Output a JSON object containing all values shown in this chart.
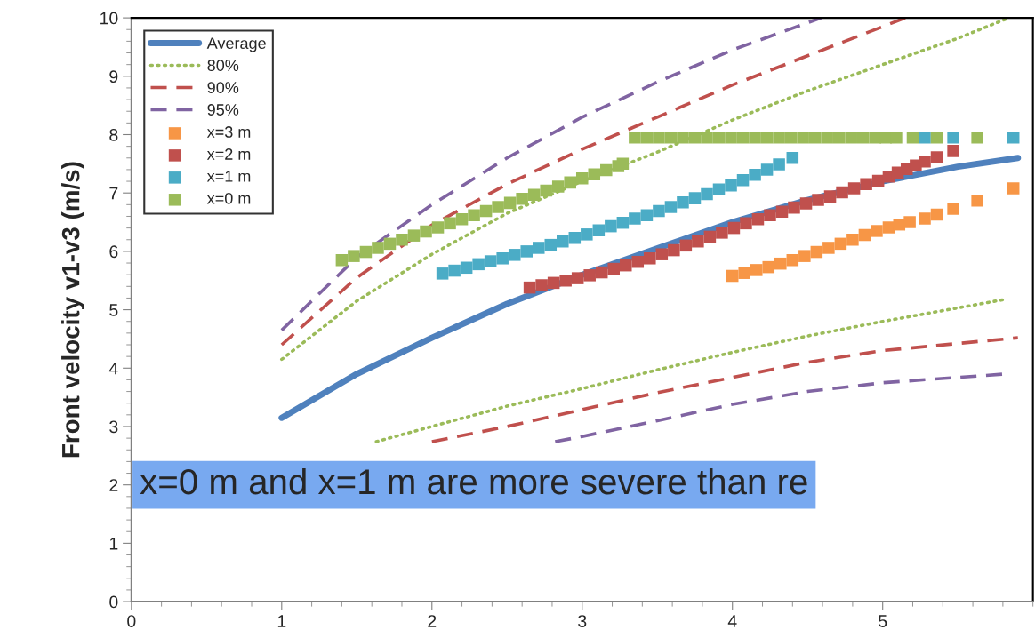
{
  "chart_data": {
    "type": "line",
    "ylabel": "Front velocity v1-v3 (m/s)",
    "xlim": [
      0,
      6
    ],
    "xticks": [
      0,
      1,
      2,
      3,
      4,
      5
    ],
    "ylim": [
      0,
      10
    ],
    "yticks": [
      0,
      1,
      2,
      3,
      4,
      5,
      6,
      7,
      8,
      9,
      10
    ],
    "grid": false,
    "legend": "top left",
    "annotations": [
      "x=0 m and x=1 m are more severe than re"
    ],
    "series": [
      {
        "name": "Average",
        "line_style": "solid",
        "color": "#4f81bd",
        "x": [
          1,
          1.5,
          2,
          2.5,
          3,
          3.5,
          4,
          4.5,
          5,
          5.5,
          5.9
        ],
        "values": [
          3.15,
          3.9,
          4.52,
          5.1,
          5.6,
          6.05,
          6.5,
          6.88,
          7.2,
          7.45,
          7.6
        ]
      },
      {
        "name": "80%",
        "line_style": "dotted",
        "color": "#9bbb59",
        "x": [
          1,
          1.5,
          2,
          2.5,
          3,
          3.5,
          4,
          4.5,
          5,
          5.5,
          5.84
        ],
        "values": [
          4.15,
          5.15,
          5.95,
          6.65,
          7.2,
          7.7,
          8.25,
          8.75,
          9.2,
          9.65,
          10
        ]
      },
      {
        "name": "90%",
        "line_style": "dashed",
        "color": "#c0504d",
        "x": [
          1,
          1.5,
          2,
          2.5,
          3,
          3.5,
          4,
          4.5,
          5,
          5.15
        ],
        "values": [
          4.4,
          5.55,
          6.45,
          7.15,
          7.75,
          8.3,
          8.85,
          9.35,
          9.85,
          10
        ]
      },
      {
        "name": "95%",
        "line_style": "dashed",
        "color": "#8064a2",
        "x": [
          1,
          1.5,
          2,
          2.5,
          3,
          3.5,
          4,
          4.59
        ],
        "values": [
          4.65,
          5.9,
          6.8,
          7.6,
          8.3,
          8.9,
          9.45,
          10
        ]
      },
      {
        "line_style": "dotted",
        "color": "#9bbb59",
        "x": [
          1.63,
          2,
          2.5,
          3,
          3.5,
          4,
          4.5,
          5,
          5.82
        ],
        "values": [
          2.74,
          3.0,
          3.35,
          3.65,
          3.97,
          4.27,
          4.55,
          4.8,
          5.18
        ]
      },
      {
        "line_style": "dashed",
        "color": "#c0504d",
        "x": [
          2.0,
          2.5,
          3,
          3.5,
          4,
          4.5,
          5,
          5.9
        ],
        "values": [
          2.74,
          3.0,
          3.29,
          3.58,
          3.84,
          4.1,
          4.3,
          4.52
        ]
      },
      {
        "line_style": "dashed",
        "color": "#8064a2",
        "x": [
          2.82,
          3,
          3.5,
          4,
          4.5,
          5,
          5.82
        ],
        "values": [
          2.74,
          2.83,
          3.1,
          3.38,
          3.6,
          3.75,
          3.9
        ]
      },
      {
        "name": "x=3 m",
        "type": "scatter",
        "marker": "square",
        "color": "#f79646",
        "x": [
          4.0,
          4.08,
          4.16,
          4.24,
          4.32,
          4.4,
          4.48,
          4.56,
          4.64,
          4.72,
          4.8,
          4.88,
          4.96,
          5.04,
          5.11,
          5.18,
          5.28,
          5.36,
          5.47,
          5.63,
          5.87
        ],
        "values": [
          5.58,
          5.63,
          5.68,
          5.73,
          5.79,
          5.85,
          5.92,
          5.99,
          6.06,
          6.13,
          6.2,
          6.28,
          6.35,
          6.41,
          6.46,
          6.5,
          6.56,
          6.63,
          6.73,
          6.87,
          7.08
        ]
      },
      {
        "name": "x=2 m",
        "type": "scatter",
        "marker": "square",
        "color": "#c0504d",
        "x": [
          2.65,
          2.73,
          2.81,
          2.89,
          2.97,
          3.05,
          3.13,
          3.21,
          3.29,
          3.37,
          3.45,
          3.53,
          3.61,
          3.69,
          3.77,
          3.85,
          3.93,
          4.01,
          4.09,
          4.17,
          4.25,
          4.33,
          4.41,
          4.49,
          4.57,
          4.65,
          4.73,
          4.81,
          4.89,
          4.97,
          5.04,
          5.1,
          5.16,
          5.22,
          5.28,
          5.36,
          5.47
        ],
        "values": [
          5.38,
          5.42,
          5.46,
          5.5,
          5.54,
          5.59,
          5.64,
          5.7,
          5.76,
          5.82,
          5.88,
          5.95,
          6.02,
          6.1,
          6.17,
          6.25,
          6.32,
          6.4,
          6.48,
          6.55,
          6.62,
          6.68,
          6.75,
          6.82,
          6.88,
          6.94,
          7.01,
          7.08,
          7.15,
          7.21,
          7.28,
          7.35,
          7.41,
          7.47,
          7.54,
          7.61,
          7.72
        ]
      },
      {
        "name": "x=1 m",
        "type": "scatter",
        "marker": "square",
        "color": "#4bacc6",
        "x": [
          2.07,
          2.15,
          2.23,
          2.31,
          2.39,
          2.47,
          2.55,
          2.63,
          2.71,
          2.79,
          2.87,
          2.95,
          3.03,
          3.11,
          3.19,
          3.27,
          3.35,
          3.43,
          3.51,
          3.59,
          3.67,
          3.75,
          3.83,
          3.91,
          3.99,
          4.07,
          4.15,
          4.23,
          4.31,
          4.4,
          5.15,
          5.28,
          5.47,
          5.87
        ],
        "values": [
          5.62,
          5.67,
          5.72,
          5.78,
          5.83,
          5.88,
          5.94,
          6.0,
          6.06,
          6.11,
          6.17,
          6.23,
          6.29,
          6.36,
          6.43,
          6.49,
          6.56,
          6.62,
          6.69,
          6.76,
          6.84,
          6.91,
          6.98,
          7.06,
          7.13,
          7.22,
          7.31,
          7.4,
          7.49,
          7.6,
          null,
          7.95,
          7.95,
          7.95
        ]
      },
      {
        "name": "x=0 m",
        "type": "scatter",
        "marker": "square",
        "color": "#9bbb59",
        "x": [
          1.4,
          1.48,
          1.56,
          1.64,
          1.72,
          1.8,
          1.88,
          1.96,
          2.04,
          2.12,
          2.2,
          2.28,
          2.36,
          2.44,
          2.52,
          2.6,
          2.68,
          2.76,
          2.84,
          2.92,
          3.0,
          3.08,
          3.16,
          3.24,
          3.27,
          3.35,
          3.43,
          3.51,
          3.59,
          3.67,
          3.75,
          3.83,
          3.91,
          3.99,
          4.07,
          4.15,
          4.23,
          4.31,
          4.39,
          4.47,
          4.55,
          4.63,
          4.71,
          4.79,
          4.87,
          4.95,
          5.02,
          5.09,
          5.2,
          5.36,
          5.63
        ],
        "values": [
          5.85,
          5.92,
          5.99,
          6.06,
          6.13,
          6.2,
          6.27,
          6.34,
          6.41,
          6.48,
          6.55,
          6.62,
          6.69,
          6.76,
          6.83,
          6.9,
          6.97,
          7.04,
          7.11,
          7.18,
          7.25,
          7.32,
          7.39,
          7.46,
          7.5,
          7.95,
          7.95,
          7.95,
          7.95,
          7.95,
          7.95,
          7.95,
          7.95,
          7.95,
          7.95,
          7.95,
          7.95,
          7.95,
          7.95,
          7.95,
          7.95,
          7.95,
          7.95,
          7.95,
          7.95,
          7.95,
          7.95,
          7.95,
          7.95,
          7.95,
          7.95
        ]
      }
    ]
  }
}
